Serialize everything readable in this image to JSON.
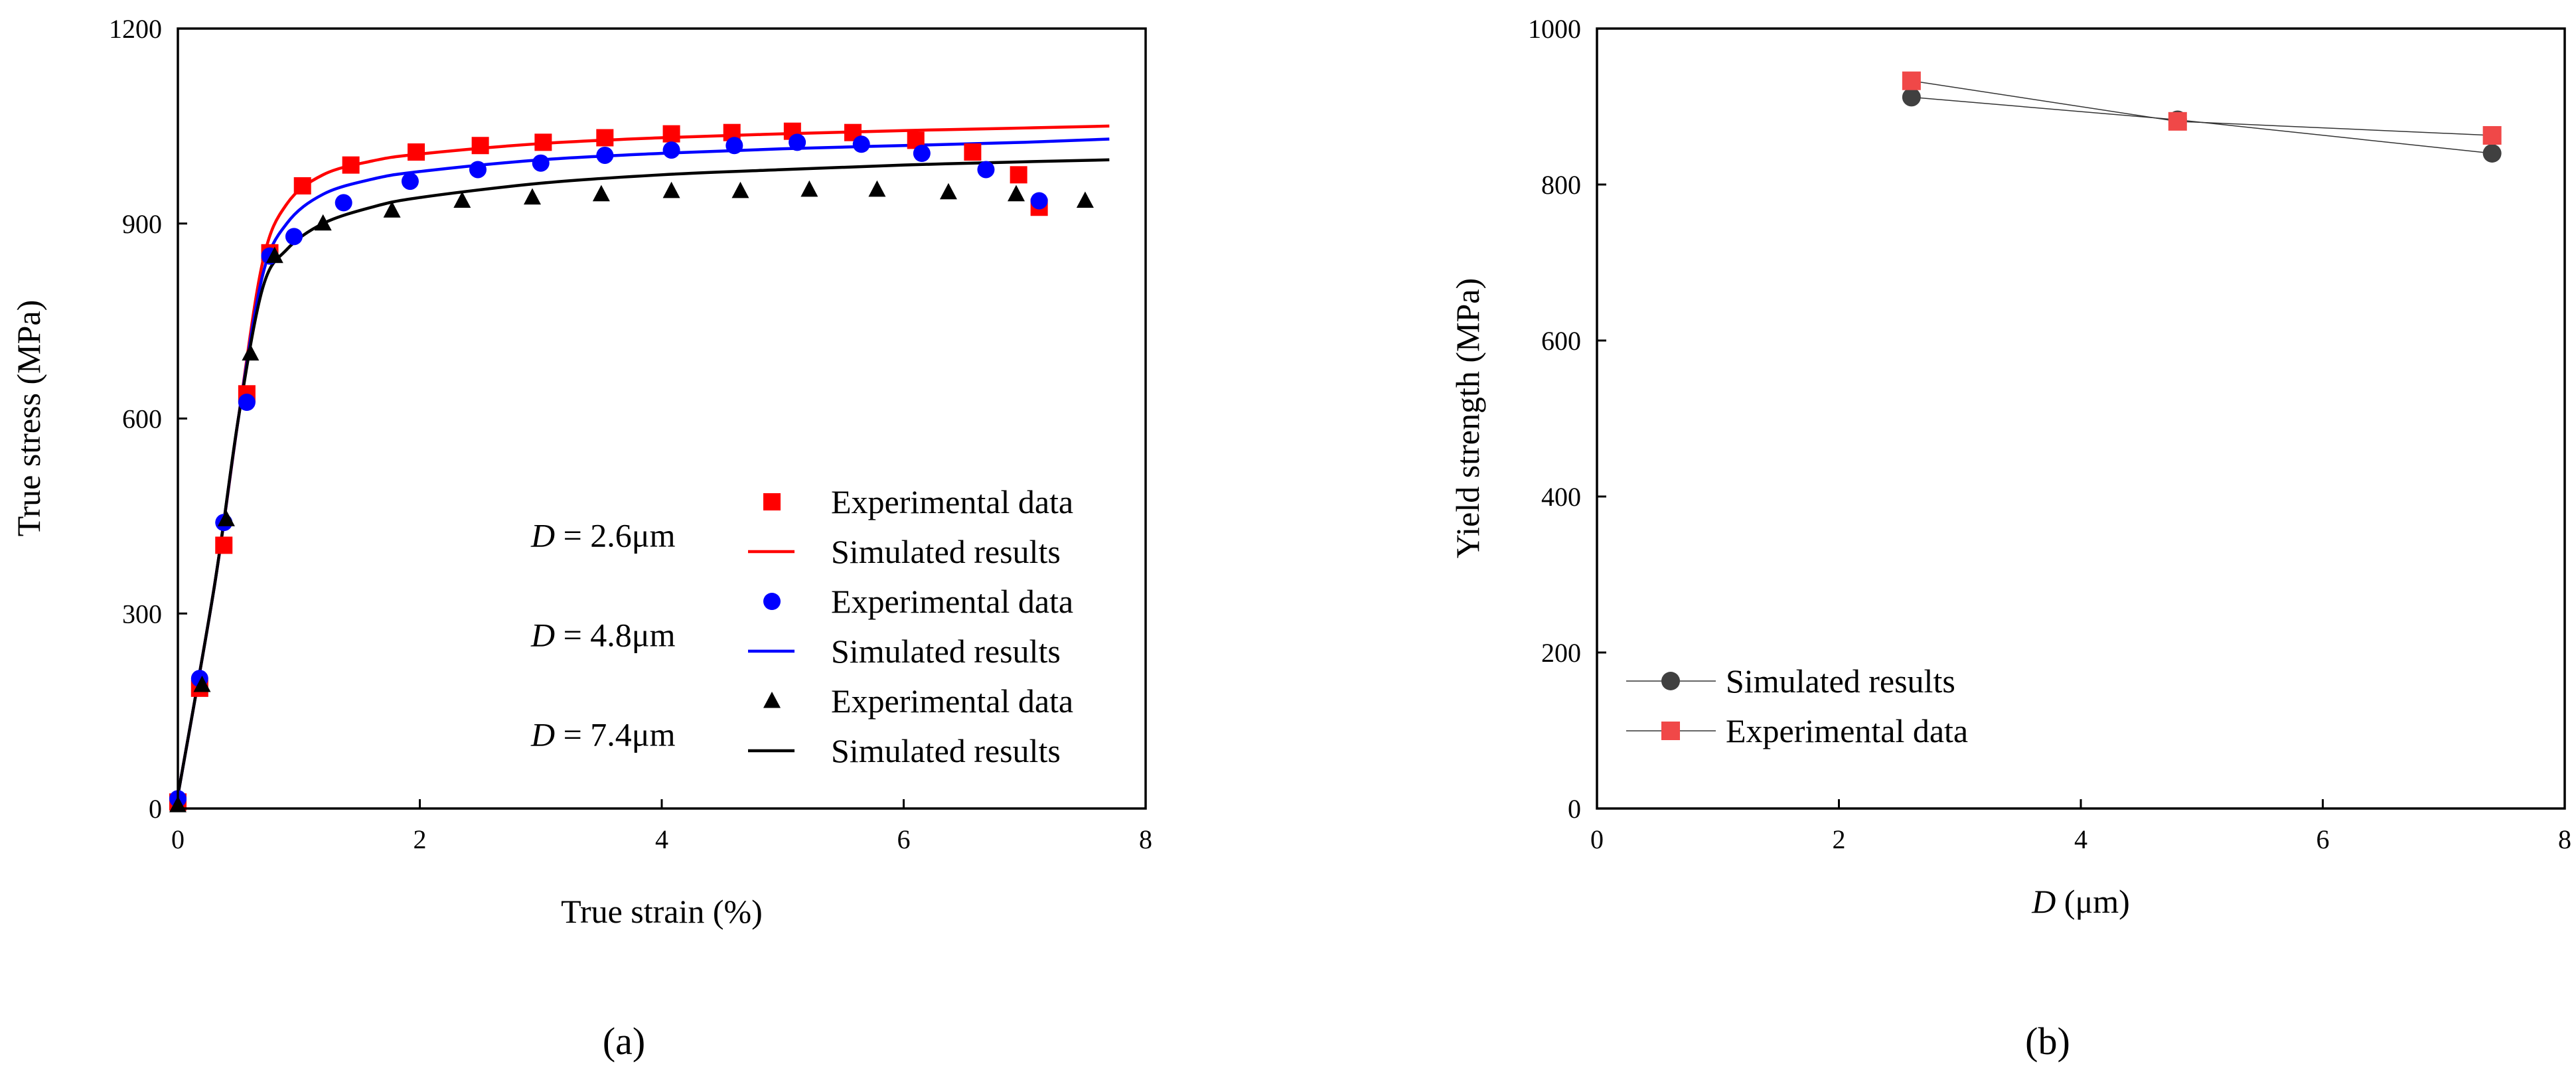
{
  "chart_data": [
    {
      "type": "scatter",
      "panel_label": "(a)",
      "xlabel": "True strain (%)",
      "ylabel": "True stress (MPa)",
      "xlim": [
        0,
        8
      ],
      "ylim": [
        0,
        1200
      ],
      "xticks": [
        "0",
        "2",
        "4",
        "6",
        "8"
      ],
      "yticks": [
        "0",
        "300",
        "600",
        "900",
        "1200"
      ],
      "groups": [
        {
          "label_var": "D",
          "label_rest": " = 2.6μm",
          "color": "#ff0000",
          "marker": "square",
          "exp_name": "Experimental data",
          "sim_name": "Simulated results",
          "exp_x": [
            0.0,
            0.18,
            0.38,
            0.57,
            0.76,
            1.03,
            1.43,
            1.97,
            2.5,
            3.02,
            3.53,
            4.08,
            4.58,
            5.08,
            5.58,
            6.1,
            6.57,
            6.95,
            7.12
          ],
          "exp_y": [
            10,
            185,
            405,
            638,
            855,
            958,
            990,
            1010,
            1020,
            1025,
            1032,
            1038,
            1040,
            1042,
            1040,
            1028,
            1010,
            975,
            925
          ],
          "sim_x": [
            0,
            0.3,
            0.5,
            0.7,
            0.9,
            1.2,
            1.6,
            2.0,
            3.0,
            4.0,
            5.0,
            6.0,
            7.0,
            7.7
          ],
          "sim_y": [
            20,
            340,
            600,
            840,
            930,
            975,
            996,
            1007,
            1023,
            1032,
            1038,
            1043,
            1047,
            1050
          ]
        },
        {
          "label_var": "D",
          "label_rest": " = 4.8μm",
          "color": "#0000ff",
          "marker": "circle",
          "exp_name": "Experimental data",
          "sim_name": "Simulated results",
          "exp_x": [
            0.0,
            0.18,
            0.38,
            0.57,
            0.76,
            0.96,
            1.37,
            1.92,
            2.48,
            3.0,
            3.53,
            4.08,
            4.6,
            5.12,
            5.65,
            6.15,
            6.68,
            7.12
          ],
          "exp_y": [
            15,
            200,
            440,
            625,
            850,
            880,
            932,
            965,
            983,
            993,
            1005,
            1013,
            1020,
            1025,
            1022,
            1008,
            983,
            935
          ],
          "sim_x": [
            0,
            0.3,
            0.5,
            0.7,
            0.9,
            1.2,
            1.6,
            2.0,
            3.0,
            4.0,
            5.0,
            6.0,
            7.0,
            7.7
          ],
          "sim_y": [
            20,
            340,
            600,
            820,
            900,
            945,
            968,
            980,
            998,
            1008,
            1015,
            1020,
            1025,
            1030
          ]
        },
        {
          "label_var": "D",
          "label_rest": " = 7.4μm",
          "color": "#000000",
          "marker": "triangle",
          "exp_name": "Experimental data",
          "sim_name": "Simulated results",
          "exp_x": [
            0.0,
            0.2,
            0.4,
            0.6,
            0.8,
            1.2,
            1.77,
            2.35,
            2.93,
            3.5,
            4.08,
            4.65,
            5.22,
            5.78,
            6.37,
            6.93,
            7.5
          ],
          "exp_y": [
            5,
            190,
            445,
            700,
            850,
            900,
            920,
            935,
            940,
            945,
            950,
            950,
            952,
            952,
            948,
            945,
            935
          ],
          "sim_x": [
            0,
            0.3,
            0.5,
            0.7,
            0.9,
            1.2,
            1.6,
            2.0,
            3.0,
            4.0,
            5.0,
            6.0,
            7.0,
            7.7
          ],
          "sim_y": [
            20,
            340,
            600,
            800,
            860,
            900,
            925,
            940,
            962,
            975,
            983,
            990,
            995,
            998
          ]
        }
      ]
    },
    {
      "type": "line",
      "panel_label": "(b)",
      "xlabel_var": "D",
      "xlabel_rest": " (μm)",
      "ylabel": "Yield strength (MPa)",
      "xlim": [
        0,
        8
      ],
      "ylim": [
        0,
        1000
      ],
      "xticks": [
        "0",
        "2",
        "4",
        "6",
        "8"
      ],
      "yticks": [
        "0",
        "200",
        "400",
        "600",
        "800",
        "1000"
      ],
      "legend_position": "bottom-left",
      "series": [
        {
          "name": "Simulated results",
          "color": "#404040",
          "marker": "circle",
          "x": [
            2.6,
            4.8,
            7.4
          ],
          "y": [
            912,
            883,
            840
          ]
        },
        {
          "name": "Experimental data",
          "color": "#f04848",
          "marker": "square",
          "x": [
            2.6,
            4.8,
            7.4
          ],
          "y": [
            933,
            881,
            863
          ]
        }
      ]
    }
  ]
}
